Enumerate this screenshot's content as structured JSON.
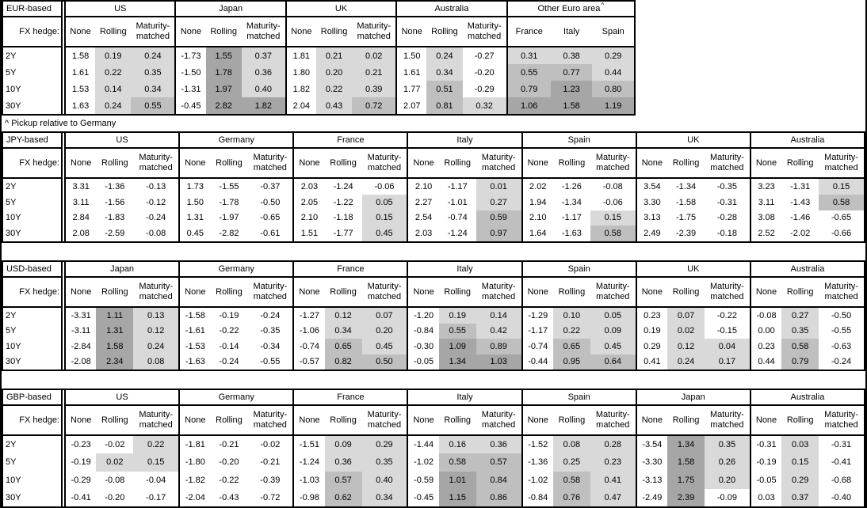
{
  "footnote": "^ Pickup relative to Germany",
  "fx_hedge_label": "FX hedge:",
  "row_labels": [
    "2Y",
    "5Y",
    "10Y",
    "30Y"
  ],
  "subcols": [
    "None",
    "Rolling",
    "Maturity-matched"
  ],
  "heatmap": {
    "light": "#d9d9d9",
    "medium": "#bfbfbf",
    "dark": "#a6a6a6",
    "rule": "positive hedged pickups shaded: 0-0.5 light, 0.5-1.0 medium, >=1.0 dark; None column unshaded"
  },
  "tables": [
    {
      "base": "EUR-based",
      "groups": [
        {
          "name": "US",
          "rows": [
            [
              "1.58",
              "0.19",
              "0.24"
            ],
            [
              "1.61",
              "0.22",
              "0.35"
            ],
            [
              "1.53",
              "0.14",
              "0.34"
            ],
            [
              "1.63",
              "0.24",
              "0.55"
            ]
          ]
        },
        {
          "name": "Japan",
          "rows": [
            [
              "-1.73",
              "1.55",
              "0.37"
            ],
            [
              "-1.50",
              "1.78",
              "0.36"
            ],
            [
              "-1.31",
              "1.97",
              "0.40"
            ],
            [
              "-0.45",
              "2.82",
              "1.82"
            ]
          ]
        },
        {
          "name": "UK",
          "rows": [
            [
              "1.81",
              "0.21",
              "0.02"
            ],
            [
              "1.80",
              "0.20",
              "0.21"
            ],
            [
              "1.82",
              "0.22",
              "0.39"
            ],
            [
              "2.04",
              "0.43",
              "0.72"
            ]
          ]
        },
        {
          "name": "Australia",
          "rows": [
            [
              "1.50",
              "0.24",
              "-0.27"
            ],
            [
              "1.61",
              "0.34",
              "-0.20"
            ],
            [
              "1.77",
              "0.51",
              "-0.29"
            ],
            [
              "2.07",
              "0.81",
              "0.32"
            ]
          ]
        },
        {
          "name": "Other Euro area",
          "sup": "^",
          "shade_all": true,
          "cols": [
            "France",
            "Italy",
            "Spain"
          ],
          "rows": [
            [
              "0.31",
              "0.38",
              "0.29"
            ],
            [
              "0.55",
              "0.77",
              "0.44"
            ],
            [
              "0.79",
              "1.23",
              "0.80"
            ],
            [
              "1.06",
              "1.58",
              "1.19"
            ]
          ]
        }
      ]
    },
    {
      "base": "JPY-based",
      "groups": [
        {
          "name": "US",
          "rows": [
            [
              "3.31",
              "-1.36",
              "-0.13"
            ],
            [
              "3.11",
              "-1.56",
              "-0.12"
            ],
            [
              "2.84",
              "-1.83",
              "-0.24"
            ],
            [
              "2.08",
              "-2.59",
              "-0.08"
            ]
          ]
        },
        {
          "name": "Germany",
          "rows": [
            [
              "1.73",
              "-1.55",
              "-0.37"
            ],
            [
              "1.50",
              "-1.78",
              "-0.50"
            ],
            [
              "1.31",
              "-1.97",
              "-0.65"
            ],
            [
              "0.45",
              "-2.82",
              "-0.61"
            ]
          ]
        },
        {
          "name": "France",
          "rows": [
            [
              "2.03",
              "-1.24",
              "-0.06"
            ],
            [
              "2.05",
              "-1.22",
              "0.05"
            ],
            [
              "2.10",
              "-1.18",
              "0.15"
            ],
            [
              "1.51",
              "-1.77",
              "0.45"
            ]
          ]
        },
        {
          "name": "Italy",
          "rows": [
            [
              "2.10",
              "-1.17",
              "0.01"
            ],
            [
              "2.27",
              "-1.01",
              "0.27"
            ],
            [
              "2.54",
              "-0.74",
              "0.59"
            ],
            [
              "2.03",
              "-1.24",
              "0.97"
            ]
          ]
        },
        {
          "name": "Spain",
          "rows": [
            [
              "2.02",
              "-1.26",
              "-0.08"
            ],
            [
              "1.94",
              "-1.34",
              "-0.06"
            ],
            [
              "2.10",
              "-1.17",
              "0.15"
            ],
            [
              "1.64",
              "-1.63",
              "0.58"
            ]
          ]
        },
        {
          "name": "UK",
          "rows": [
            [
              "3.54",
              "-1.34",
              "-0.35"
            ],
            [
              "3.30",
              "-1.58",
              "-0.31"
            ],
            [
              "3.13",
              "-1.75",
              "-0.28"
            ],
            [
              "2.49",
              "-2.39",
              "-0.18"
            ]
          ]
        },
        {
          "name": "Australia",
          "rows": [
            [
              "3.23",
              "-1.31",
              "0.15"
            ],
            [
              "3.11",
              "-1.43",
              "0.58"
            ],
            [
              "3.08",
              "-1.46",
              "-0.65"
            ],
            [
              "2.52",
              "-2.02",
              "-0.66"
            ]
          ]
        }
      ]
    },
    {
      "base": "USD-based",
      "groups": [
        {
          "name": "Japan",
          "rows": [
            [
              "-3.31",
              "1.11",
              "0.13"
            ],
            [
              "-3.11",
              "1.31",
              "0.12"
            ],
            [
              "-2.84",
              "1.58",
              "0.24"
            ],
            [
              "-2.08",
              "2.34",
              "0.08"
            ]
          ]
        },
        {
          "name": "Germany",
          "rows": [
            [
              "-1.58",
              "-0.19",
              "-0.24"
            ],
            [
              "-1.61",
              "-0.22",
              "-0.35"
            ],
            [
              "-1.53",
              "-0.14",
              "-0.34"
            ],
            [
              "-1.63",
              "-0.24",
              "-0.55"
            ]
          ]
        },
        {
          "name": "France",
          "rows": [
            [
              "-1.27",
              "0.12",
              "0.07"
            ],
            [
              "-1.06",
              "0.34",
              "0.20"
            ],
            [
              "-0.74",
              "0.65",
              "0.45"
            ],
            [
              "-0.57",
              "0.82",
              "0.50"
            ]
          ]
        },
        {
          "name": "Italy",
          "rows": [
            [
              "-1.20",
              "0.19",
              "0.14"
            ],
            [
              "-0.84",
              "0.55",
              "0.42"
            ],
            [
              "-0.30",
              "1.09",
              "0.89"
            ],
            [
              "-0.05",
              "1.34",
              "1.03"
            ]
          ]
        },
        {
          "name": "Spain",
          "rows": [
            [
              "-1.29",
              "0.10",
              "0.05"
            ],
            [
              "-1.17",
              "0.22",
              "0.09"
            ],
            [
              "-0.74",
              "0.65",
              "0.45"
            ],
            [
              "-0.44",
              "0.95",
              "0.64"
            ]
          ]
        },
        {
          "name": "UK",
          "rows": [
            [
              "0.23",
              "0.07",
              "-0.22"
            ],
            [
              "0.19",
              "0.02",
              "-0.15"
            ],
            [
              "0.29",
              "0.12",
              "0.04"
            ],
            [
              "0.41",
              "0.24",
              "0.17"
            ]
          ]
        },
        {
          "name": "Australia",
          "rows": [
            [
              "-0.08",
              "0.27",
              "-0.50"
            ],
            [
              "0.00",
              "0.35",
              "-0.55"
            ],
            [
              "0.23",
              "0.58",
              "-0.63"
            ],
            [
              "0.44",
              "0.79",
              "-0.24"
            ]
          ]
        }
      ]
    },
    {
      "base": "GBP-based",
      "groups": [
        {
          "name": "US",
          "rows": [
            [
              "-0.23",
              "-0.02",
              "0.22"
            ],
            [
              "-0.19",
              "0.02",
              "0.15"
            ],
            [
              "-0.29",
              "-0.08",
              "-0.04"
            ],
            [
              "-0.41",
              "-0.20",
              "-0.17"
            ]
          ]
        },
        {
          "name": "Germany",
          "rows": [
            [
              "-1.81",
              "-0.21",
              "-0.02"
            ],
            [
              "-1.80",
              "-0.20",
              "-0.21"
            ],
            [
              "-1.82",
              "-0.22",
              "-0.39"
            ],
            [
              "-2.04",
              "-0.43",
              "-0.72"
            ]
          ]
        },
        {
          "name": "France",
          "rows": [
            [
              "-1.51",
              "0.09",
              "0.29"
            ],
            [
              "-1.24",
              "0.36",
              "0.35"
            ],
            [
              "-1.03",
              "0.57",
              "0.40"
            ],
            [
              "-0.98",
              "0.62",
              "0.34"
            ]
          ]
        },
        {
          "name": "Italy",
          "rows": [
            [
              "-1.44",
              "0.16",
              "0.36"
            ],
            [
              "-1.02",
              "0.58",
              "0.57"
            ],
            [
              "-0.59",
              "1.01",
              "0.84"
            ],
            [
              "-0.45",
              "1.15",
              "0.86"
            ]
          ]
        },
        {
          "name": "Spain",
          "rows": [
            [
              "-1.52",
              "0.08",
              "0.28"
            ],
            [
              "-1.36",
              "0.25",
              "0.23"
            ],
            [
              "-1.02",
              "0.58",
              "0.41"
            ],
            [
              "-0.84",
              "0.76",
              "0.47"
            ]
          ]
        },
        {
          "name": "Japan",
          "rows": [
            [
              "-3.54",
              "1.34",
              "0.35"
            ],
            [
              "-3.30",
              "1.58",
              "0.26"
            ],
            [
              "-3.13",
              "1.75",
              "0.20"
            ],
            [
              "-2.49",
              "2.39",
              "-0.09"
            ]
          ]
        },
        {
          "name": "Australia",
          "rows": [
            [
              "-0.31",
              "0.03",
              "-0.31"
            ],
            [
              "-0.19",
              "0.15",
              "-0.41"
            ],
            [
              "-0.05",
              "0.29",
              "-0.68"
            ],
            [
              "0.03",
              "0.37",
              "-0.40"
            ]
          ]
        }
      ]
    }
  ]
}
